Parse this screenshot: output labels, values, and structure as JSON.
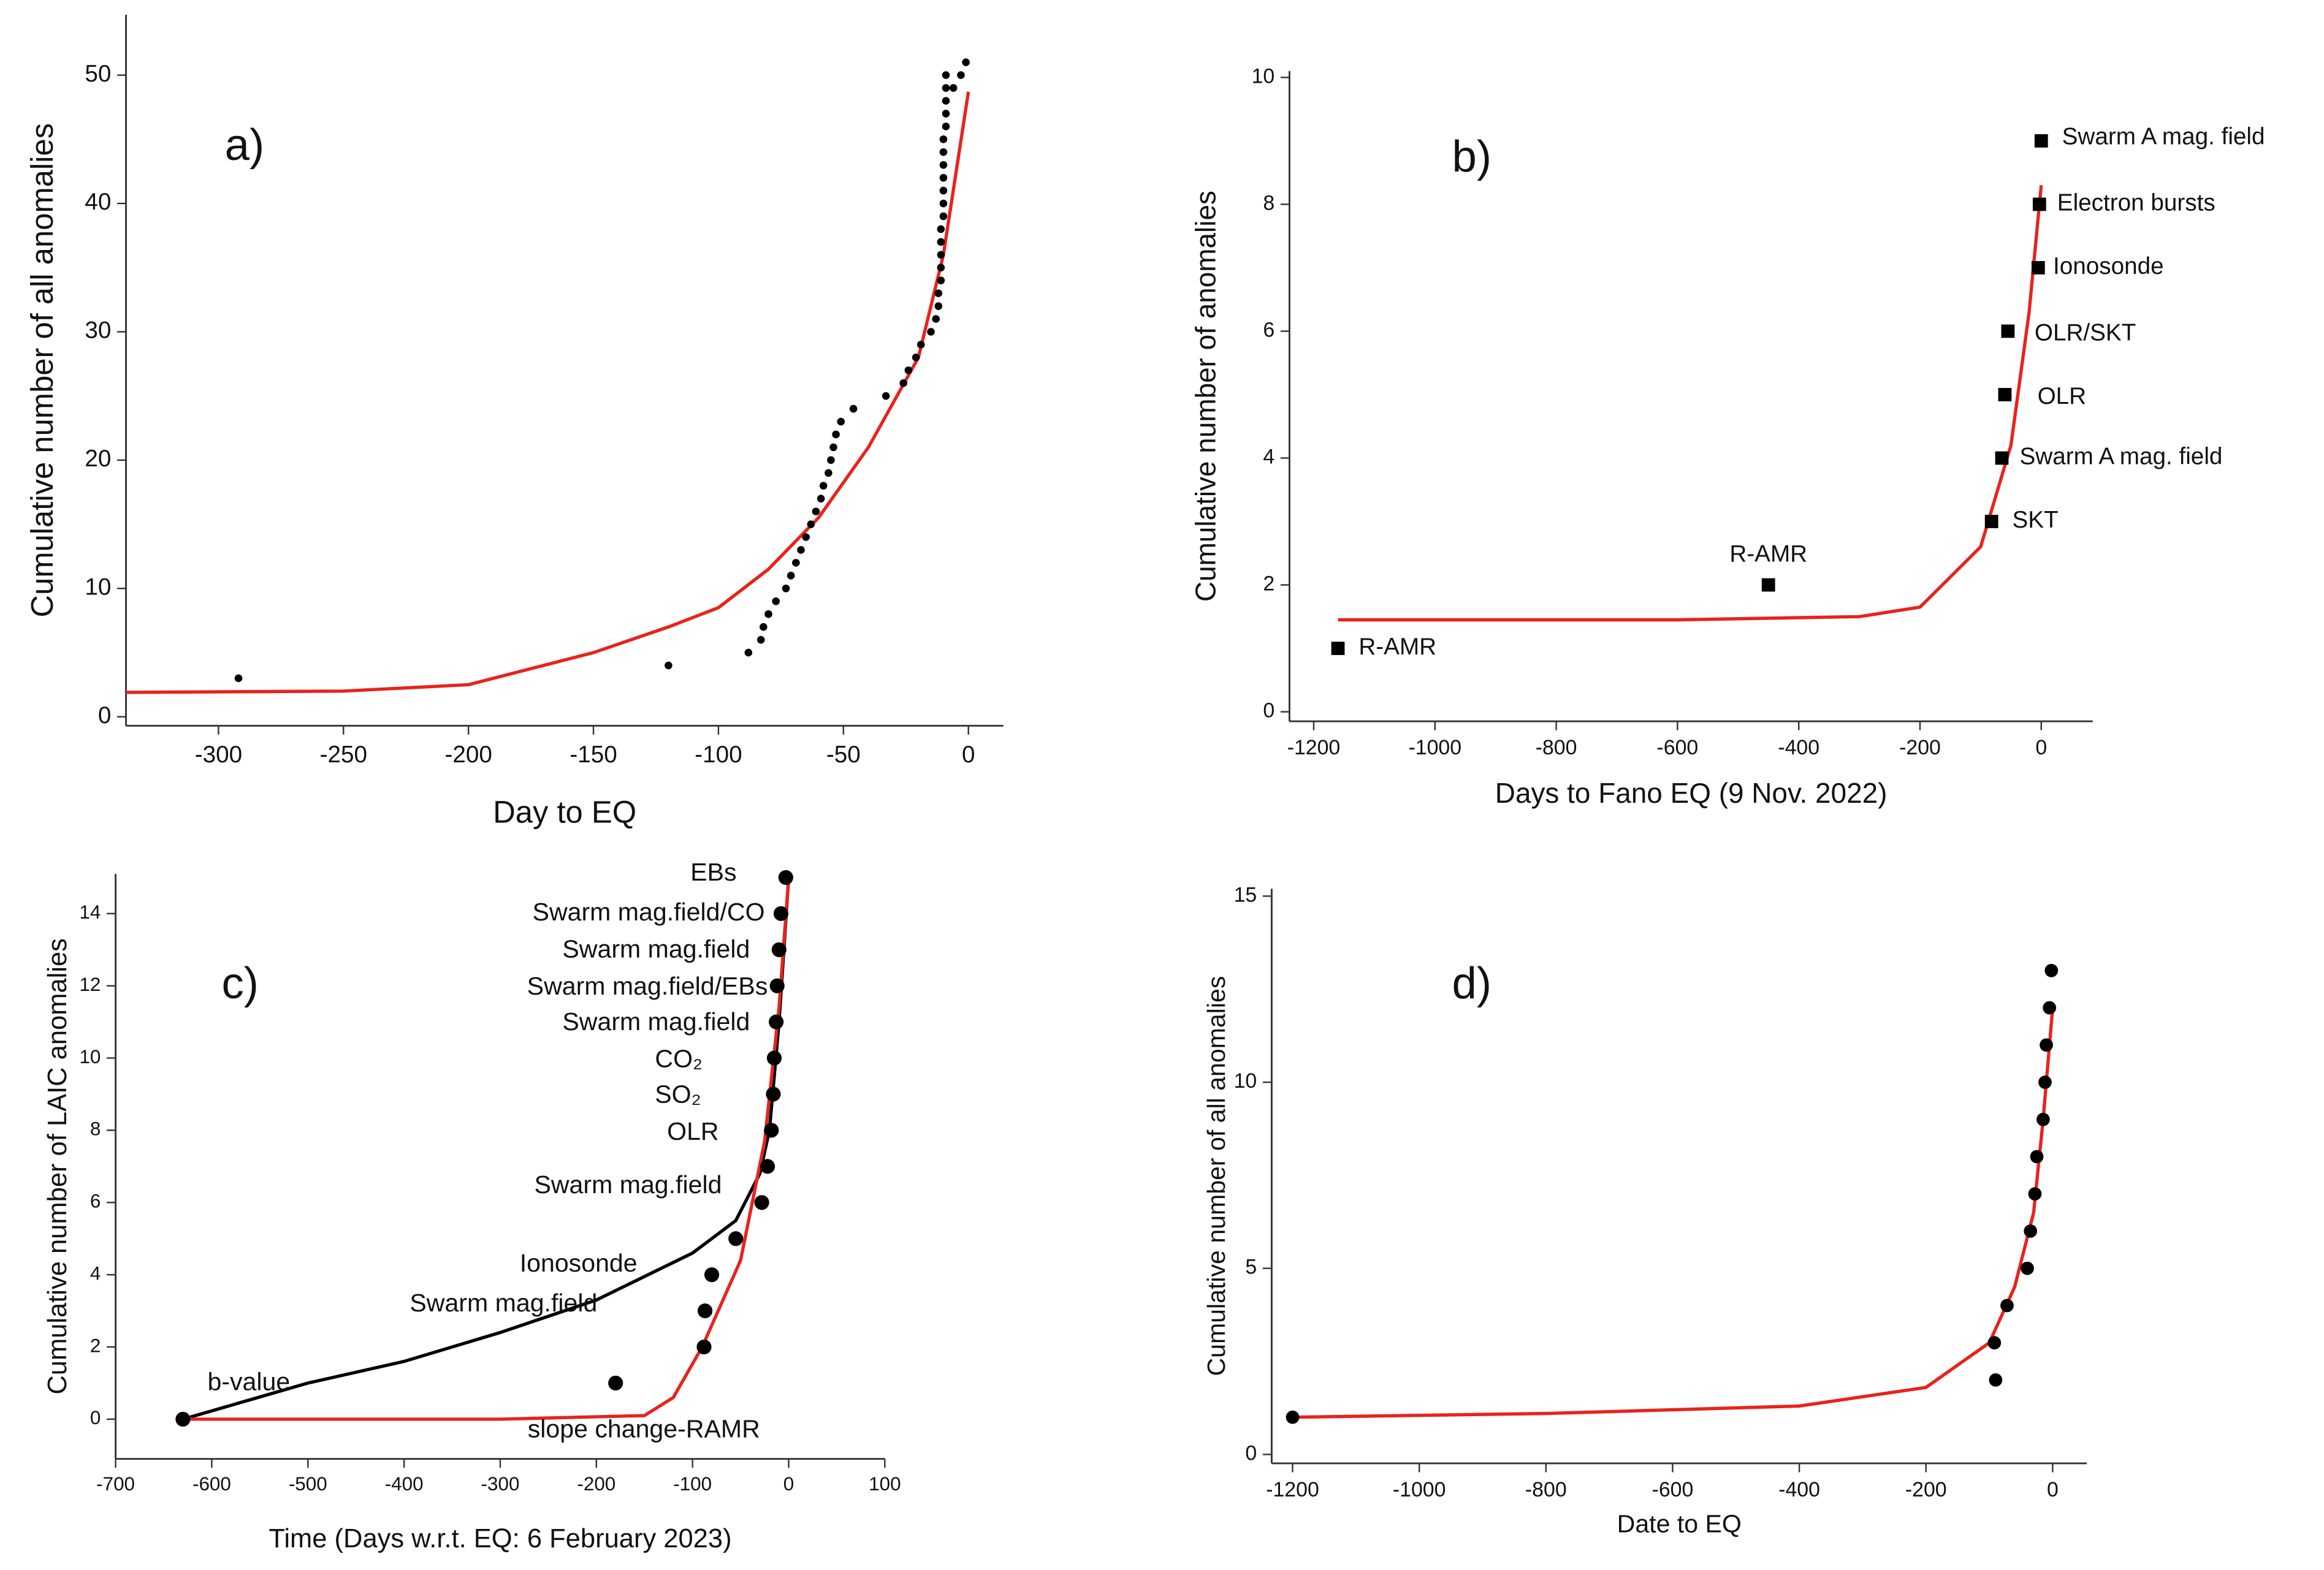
{
  "chart_data": [
    {
      "type": "scatter",
      "panel_label": "a)",
      "x_label": "Day to EQ",
      "y_label": "Cumulative number of all anomalies",
      "xlim": [
        -337,
        14
      ],
      "ylim": [
        -0.7,
        54.7
      ],
      "xticks": [
        -300,
        -250,
        -200,
        -150,
        -100,
        -50,
        0
      ],
      "yticks": [
        0,
        10,
        20,
        30,
        40,
        50
      ],
      "series": [
        {
          "mode": "points",
          "marker": "circle",
          "color": "#000000",
          "x": [
            -292,
            -120,
            -88,
            -83,
            -82,
            -80,
            -77,
            -73,
            -71,
            -69,
            -67,
            -65,
            -63,
            -61,
            -59,
            -58,
            -56,
            -55,
            -54,
            -53,
            -51,
            -46,
            -33,
            -26,
            -24,
            -21,
            -19,
            -15,
            -13,
            -12,
            -12,
            -11,
            -11,
            -11,
            -11,
            -11,
            -10,
            -10,
            -10,
            -10,
            -10,
            -10,
            -10,
            -9,
            -9,
            -9,
            -9,
            -9,
            -6,
            -3,
            -1
          ],
          "values": [
            3,
            4,
            5,
            6,
            7,
            8,
            9,
            10,
            11,
            12,
            13,
            14,
            15,
            16,
            17,
            18,
            19,
            20,
            21,
            22,
            23,
            24,
            25,
            26,
            27,
            28,
            29,
            30,
            31,
            32,
            33,
            34,
            35,
            36,
            37,
            38,
            39,
            40,
            41,
            42,
            43,
            44,
            45,
            46,
            47,
            48,
            49,
            50,
            49,
            50,
            51
          ]
        },
        {
          "mode": "line",
          "color": "#e8231c",
          "x": [
            -337,
            -250,
            -200,
            -150,
            -120,
            -100,
            -80,
            -60,
            -40,
            -20,
            -10,
            0
          ],
          "values": [
            1.9,
            2.0,
            2.5,
            5,
            7,
            8.5,
            11.5,
            15.5,
            21,
            28,
            36,
            48.7
          ]
        }
      ]
    },
    {
      "type": "scatter",
      "panel_label": "b)",
      "x_label": "Days to Fano EQ (9 Nov. 2022)",
      "y_label": "Cumulative number of anomalies",
      "xlim": [
        -1240,
        85
      ],
      "ylim": [
        -0.15,
        10.1
      ],
      "xticks": [
        -1200,
        -1000,
        -800,
        -600,
        -400,
        -200,
        0
      ],
      "yticks": [
        0,
        2,
        4,
        6,
        8,
        10
      ],
      "series": [
        {
          "mode": "points",
          "marker": "square",
          "color": "#000000",
          "x": [
            -1160,
            -450,
            -82,
            -65,
            -60,
            -55,
            -5,
            -3,
            0
          ],
          "values": [
            1,
            2,
            3,
            4,
            5,
            6,
            7,
            8,
            9
          ],
          "point_labels": [
            "R-AMR",
            "R-AMR",
            "SKT",
            "Swarm A mag. field",
            "OLR",
            "OLR/SKT",
            "Ionosonde",
            "Electron bursts",
            "Swarm A mag. field"
          ]
        },
        {
          "mode": "line",
          "color": "#e8231c",
          "x": [
            -1160,
            -600,
            -300,
            -200,
            -100,
            -50,
            -20,
            0
          ],
          "values": [
            1.45,
            1.45,
            1.5,
            1.65,
            2.6,
            4.2,
            6.3,
            8.3
          ]
        }
      ]
    },
    {
      "type": "scatter",
      "panel_label": "c)",
      "x_label": "Time (Days w.r.t. EQ: 6 February 2023)",
      "y_label": "Cumulative number of LAIC anomalies",
      "xlim": [
        -700,
        100
      ],
      "ylim": [
        -1.1,
        15.1
      ],
      "xticks": [
        -700,
        -600,
        -500,
        -400,
        -300,
        -200,
        -100,
        0,
        100
      ],
      "yticks": [
        0,
        2,
        4,
        6,
        8,
        10,
        12,
        14
      ],
      "annotations": [
        "EBs",
        "Swarm mag.field/CO",
        "Swarm mag.field",
        "Swarm mag.field/EBs",
        "Swarm mag.field",
        "CO₂",
        "SO₂",
        "OLR",
        "Swarm mag.field",
        "Ionosonde",
        "Swarm mag.field",
        "b-value",
        "slope change-RAMR"
      ],
      "series": [
        {
          "mode": "points",
          "marker": "circle",
          "color": "#000000",
          "x": [
            -630,
            -180,
            -88,
            -87,
            -80,
            -55,
            -28,
            -22,
            -18,
            -16,
            -15,
            -13,
            -12,
            -10,
            -8,
            -3
          ],
          "values": [
            0,
            1,
            2,
            3,
            4,
            5,
            6,
            7,
            8,
            9,
            10,
            11,
            12,
            13,
            14,
            15
          ]
        },
        {
          "mode": "line",
          "color": "#000000",
          "x": [
            -630,
            -500,
            -400,
            -300,
            -200,
            -100,
            -55,
            -30,
            -20,
            -10,
            0
          ],
          "values": [
            0,
            1,
            1.6,
            2.4,
            3.3,
            4.6,
            5.5,
            6.8,
            8,
            11,
            15
          ]
        },
        {
          "mode": "line",
          "color": "#e8231c",
          "x": [
            -630,
            -300,
            -150,
            -120,
            -90,
            -50,
            -25,
            -10,
            0
          ],
          "values": [
            0,
            0,
            0.1,
            0.6,
            2,
            4.4,
            7.7,
            11.4,
            15
          ]
        }
      ]
    },
    {
      "type": "scatter",
      "panel_label": "d)",
      "x_label": "Date to EQ",
      "y_label": "Cumulative number of all anomalies",
      "xlim": [
        -1233,
        54
      ],
      "ylim": [
        -0.24,
        15.2
      ],
      "xticks": [
        -1200,
        -1000,
        -800,
        -600,
        -400,
        -200,
        0
      ],
      "yticks": [
        0,
        5,
        10,
        15
      ],
      "series": [
        {
          "mode": "points",
          "marker": "circle",
          "color": "#000000",
          "x": [
            -1200,
            -90,
            -92,
            -72,
            -40,
            -35,
            -28,
            -25,
            -15,
            -12,
            -10,
            -5,
            -2
          ],
          "values": [
            1,
            2,
            3,
            4,
            5,
            6,
            7,
            8,
            9,
            10,
            11,
            12,
            13
          ]
        },
        {
          "mode": "line",
          "color": "#e8231c",
          "x": [
            -1200,
            -800,
            -400,
            -200,
            -100,
            -60,
            -30,
            -15,
            -5,
            0
          ],
          "values": [
            1,
            1.1,
            1.3,
            1.8,
            3,
            4.5,
            6.5,
            9,
            11,
            12
          ]
        }
      ]
    }
  ]
}
